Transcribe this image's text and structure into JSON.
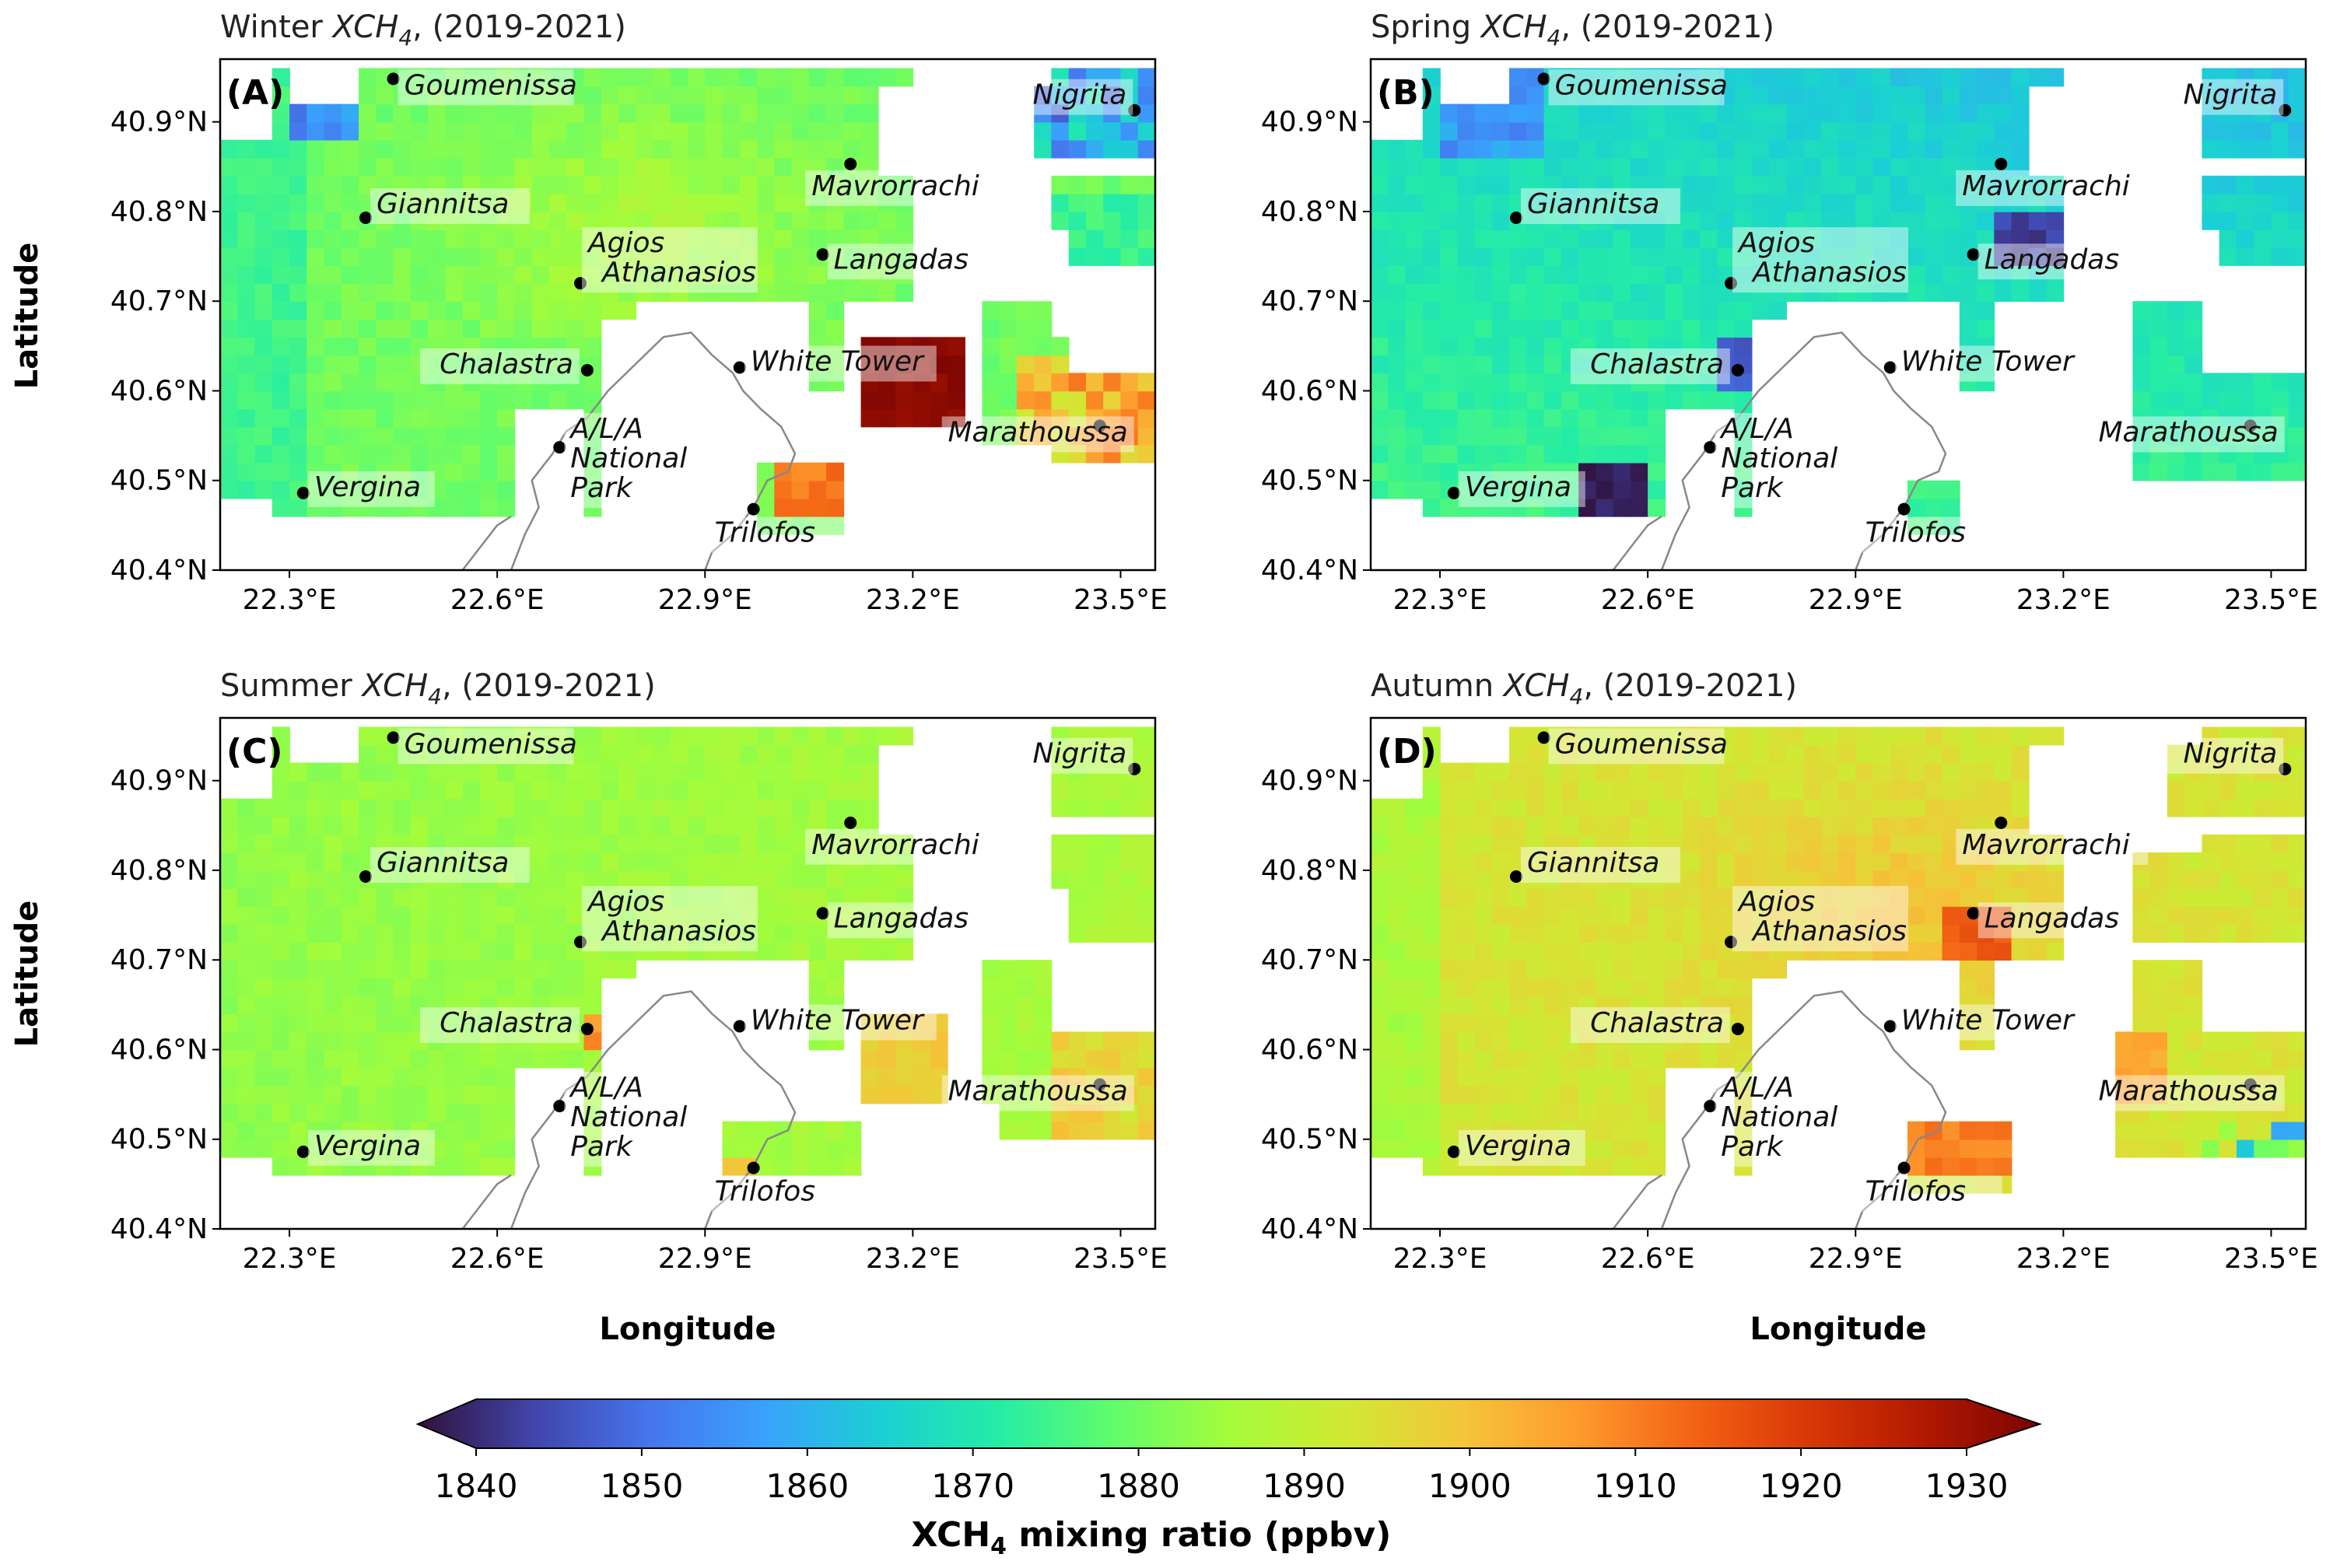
{
  "figure": {
    "axis_label_y": "Latitude",
    "axis_label_x": "Longitude",
    "x_ticks": [
      "22.3°E",
      "22.6°E",
      "22.9°E",
      "23.2°E",
      "23.5°E"
    ],
    "y_ticks": [
      "40.9°N",
      "40.8°N",
      "40.7°N",
      "40.6°N",
      "40.5°N",
      "40.4°N"
    ],
    "x_tick_values": [
      22.3,
      22.6,
      22.9,
      23.2,
      23.5
    ],
    "y_tick_values": [
      40.9,
      40.8,
      40.7,
      40.6,
      40.5,
      40.4
    ],
    "lon_range": [
      22.2,
      23.55
    ],
    "lat_range": [
      40.4,
      40.97
    ]
  },
  "panels": [
    {
      "id": "A",
      "label": "(A)",
      "season": "Winter",
      "species_main": "XCH",
      "species_sub": "4",
      "period": ", (2019-2021)"
    },
    {
      "id": "B",
      "label": "(B)",
      "season": "Spring",
      "species_main": "XCH",
      "species_sub": "4",
      "period": ", (2019-2021)"
    },
    {
      "id": "C",
      "label": "(C)",
      "season": "Summer",
      "species_main": "XCH",
      "species_sub": "4",
      "period": ", (2019-2021)"
    },
    {
      "id": "D",
      "label": "(D)",
      "season": "Autumn",
      "species_main": "XCH",
      "species_sub": "4",
      "period": ", (2019-2021)"
    }
  ],
  "sites": [
    {
      "name": "Goumenissa",
      "lon": 22.45,
      "lat": 40.948
    },
    {
      "name": "Giannitsa",
      "lon": 22.41,
      "lat": 40.793
    },
    {
      "name": "Agios",
      "name2": "Athanasios",
      "lon": 22.72,
      "lat": 40.72
    },
    {
      "name": "Mavrorrachi",
      "lon": 23.11,
      "lat": 40.853
    },
    {
      "name": "Langadas",
      "lon": 23.07,
      "lat": 40.752
    },
    {
      "name": "Nigrita",
      "lon": 23.52,
      "lat": 40.913
    },
    {
      "name": "Chalastra",
      "lon": 22.73,
      "lat": 40.623
    },
    {
      "name": "White Tower",
      "lon": 22.95,
      "lat": 40.626
    },
    {
      "name": "A/L/A",
      "name2": "National",
      "name3": "Park",
      "lon": 22.69,
      "lat": 40.537
    },
    {
      "name": "Marathoussa",
      "lon": 23.47,
      "lat": 40.561
    },
    {
      "name": "Vergina",
      "lon": 22.32,
      "lat": 40.486
    },
    {
      "name": "Trilofos",
      "lon": 22.97,
      "lat": 40.468
    }
  ],
  "colorbar": {
    "ticks": [
      "1840",
      "1850",
      "1860",
      "1870",
      "1880",
      "1890",
      "1900",
      "1910",
      "1920",
      "1930"
    ],
    "tick_values": [
      1840,
      1850,
      1860,
      1870,
      1880,
      1890,
      1900,
      1910,
      1920,
      1930
    ],
    "label_main": "XCH",
    "label_sub": "4",
    "label_rest": " mixing ratio (ppbv)",
    "colors": [
      "#30123b",
      "#4145ab",
      "#4675ed",
      "#39a2fc",
      "#1bcfd4",
      "#24eca6",
      "#61fc6c",
      "#a4fc3b",
      "#d1e834",
      "#f3c63a",
      "#fe9b2d",
      "#f36315",
      "#d93806",
      "#b11901",
      "#7a0403"
    ]
  }
}
